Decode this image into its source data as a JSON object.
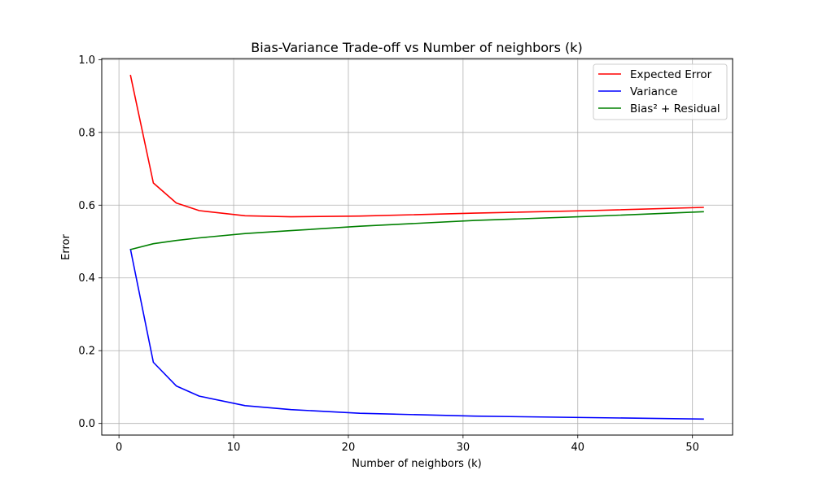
{
  "chart_data": {
    "type": "line",
    "title": "Bias-Variance Trade-off vs Number of neighbors (k)",
    "xlabel": "Number of neighbors (k)",
    "ylabel": "Error",
    "xlim": [
      -1.5,
      53.5
    ],
    "ylim": [
      -0.032,
      1.003
    ],
    "xticks": [
      0,
      10,
      20,
      30,
      40,
      50
    ],
    "yticks": [
      0.0,
      0.2,
      0.4,
      0.6,
      0.8,
      1.0
    ],
    "xtick_labels": [
      "0",
      "10",
      "20",
      "30",
      "40",
      "50"
    ],
    "ytick_labels": [
      "0.0",
      "0.2",
      "0.4",
      "0.6",
      "0.8",
      "1.0"
    ],
    "grid": true,
    "legend_position": "upper right",
    "x": [
      1,
      3,
      5,
      7,
      11,
      15,
      21,
      31,
      41,
      51
    ],
    "series": [
      {
        "name": "Expected Error",
        "color": "#ff0000",
        "values": [
          0.958,
          0.661,
          0.606,
          0.585,
          0.571,
          0.568,
          0.57,
          0.578,
          0.585,
          0.594
        ]
      },
      {
        "name": "Variance",
        "color": "#0000ff",
        "values": [
          0.48,
          0.168,
          0.103,
          0.075,
          0.049,
          0.038,
          0.028,
          0.02,
          0.016,
          0.012
        ]
      },
      {
        "name": "Bias² + Residual",
        "color": "#008000",
        "values": [
          0.478,
          0.494,
          0.503,
          0.51,
          0.522,
          0.53,
          0.542,
          0.558,
          0.569,
          0.582
        ]
      }
    ]
  }
}
